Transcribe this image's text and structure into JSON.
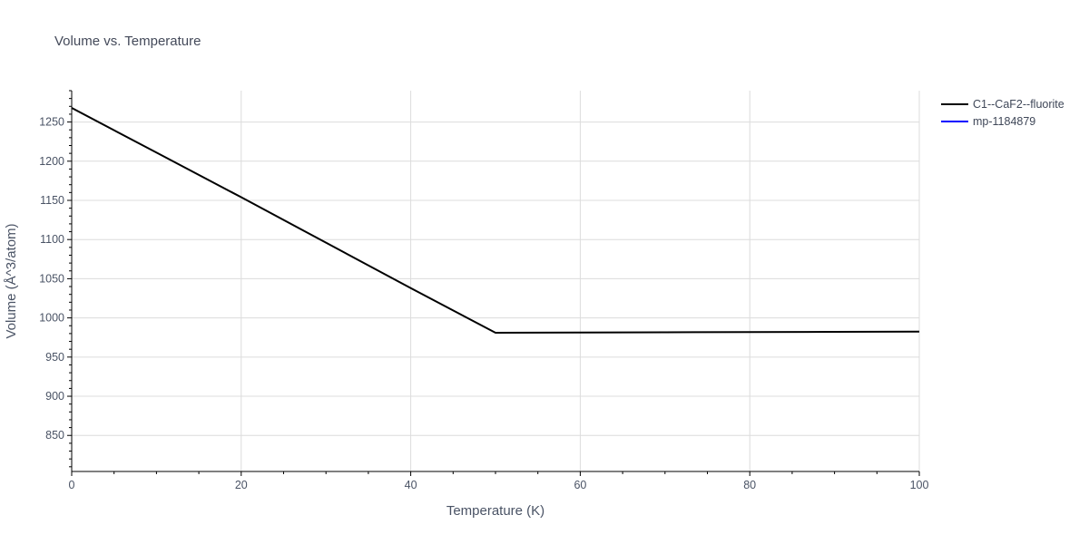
{
  "chart_data": {
    "type": "line",
    "title": "Volume vs. Temperature",
    "xlabel": "Temperature (K)",
    "ylabel": "Volume (Å^3/atom)",
    "xlim": [
      0,
      100
    ],
    "ylim": [
      804,
      1290
    ],
    "x_ticks": [
      0,
      20,
      40,
      60,
      80,
      100
    ],
    "y_ticks": [
      850,
      900,
      950,
      1000,
      1050,
      1100,
      1150,
      1200,
      1250
    ],
    "grid": true,
    "legend_position": "top-right",
    "series": [
      {
        "name": "C1--CaF2--fluorite",
        "color": "#000000",
        "x": [
          0,
          10,
          20,
          30,
          40,
          50,
          60,
          70,
          80,
          90,
          100
        ],
        "y": [
          1268,
          1211,
          1154,
          1096,
          1038,
          981,
          981.3,
          981.6,
          981.9,
          982.2,
          982.5
        ]
      },
      {
        "name": "mp-1184879",
        "color": "#0000ff",
        "x": [],
        "y": []
      }
    ]
  }
}
